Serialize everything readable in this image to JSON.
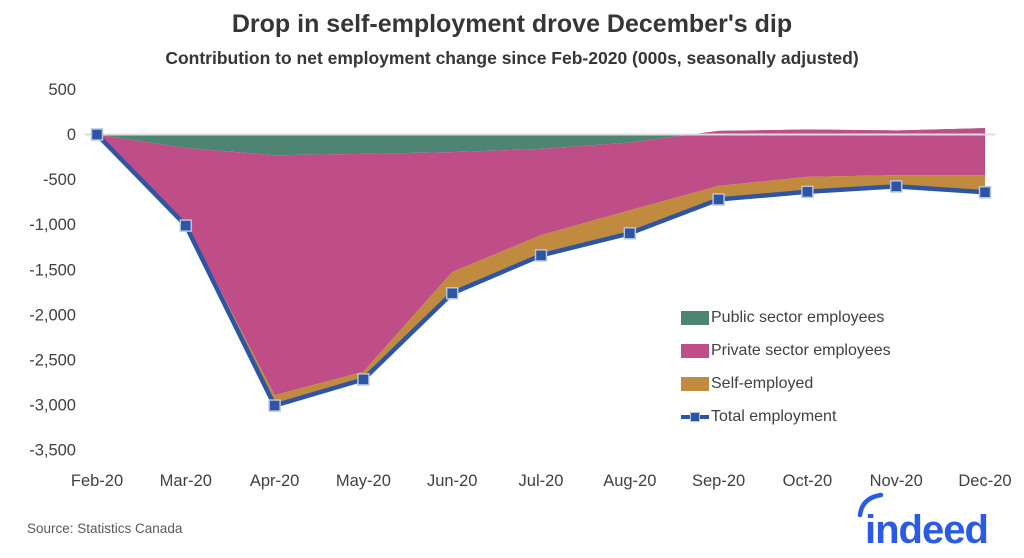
{
  "header": {
    "title": "Drop in self-employment drove December's dip",
    "subtitle": "Contribution to net employment change since Feb-2020 (000s, seasonally adjusted)"
  },
  "source": "Source: Statistics Canada",
  "logo": {
    "text": "indeed",
    "color": "#2b5be4"
  },
  "colors": {
    "public": "#4e8572",
    "private": "#bf4d87",
    "self_employed": "#c08b3e",
    "total_line": "#2d55a4",
    "marker_border": "#b3c3e0",
    "axis_text": "#404040",
    "zero_line": "#dcdcdc"
  },
  "chart_data": {
    "type": "area",
    "subtype": "stacked-area-with-total-line",
    "title": "Drop in self-employment drove December's dip",
    "subtitle": "Contribution to net employment change since Feb-2020 (000s, seasonally adjusted)",
    "xlabel": "",
    "ylabel": "",
    "x": [
      "Feb-20",
      "Mar-20",
      "Apr-20",
      "May-20",
      "Jun-20",
      "Jul-20",
      "Aug-20",
      "Sep-20",
      "Oct-20",
      "Nov-20",
      "Dec-20"
    ],
    "series": [
      {
        "name": "Public sector employees",
        "color": "#4e8572",
        "values": [
          0,
          -150,
          -230,
          -215,
          -195,
          -160,
          -90,
          40,
          55,
          45,
          70
        ]
      },
      {
        "name": "Private sector employees",
        "color": "#bf4d87",
        "values": [
          0,
          -835,
          -2660,
          -2415,
          -1330,
          -955,
          -750,
          -610,
          -525,
          -495,
          -520
        ]
      },
      {
        "name": "Self-employed",
        "color": "#c08b3e",
        "values": [
          0,
          -25,
          -115,
          -85,
          -235,
          -225,
          -255,
          -150,
          -165,
          -125,
          -190
        ]
      }
    ],
    "line_series": {
      "name": "Total employment",
      "color": "#2d55a4",
      "marker": "square",
      "values": [
        0,
        -1010,
        -3005,
        -2715,
        -1760,
        -1340,
        -1095,
        -720,
        -635,
        -575,
        -640
      ]
    },
    "ylim": [
      -3500,
      500
    ],
    "y_ticks": [
      {
        "value": 500,
        "label": "500"
      },
      {
        "value": 0,
        "label": "0"
      },
      {
        "value": -500,
        "label": "-500"
      },
      {
        "value": -1000,
        "label": "-1,000"
      },
      {
        "value": -1500,
        "label": "-1,500"
      },
      {
        "value": -2000,
        "label": "-2,000"
      },
      {
        "value": -2500,
        "label": "-2,500"
      },
      {
        "value": -3000,
        "label": "-3,000"
      },
      {
        "value": -3500,
        "label": "-3,500"
      }
    ],
    "grid": false,
    "legend_position": "inside-right"
  }
}
